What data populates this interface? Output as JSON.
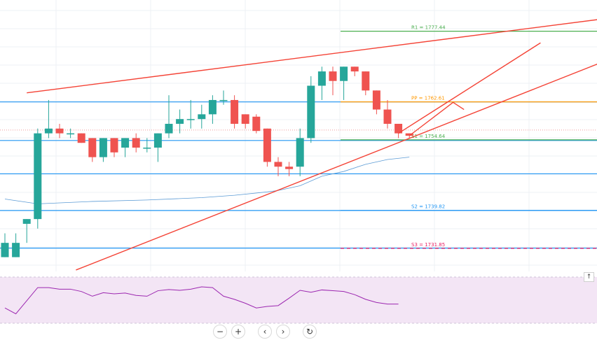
{
  "chart_data": {
    "type": "candlestick",
    "ylim": [
      1727,
      1784
    ],
    "pivots": [
      {
        "name": "R1",
        "label": "R1 = 1777.44",
        "value": 1777.44,
        "color": "#4caf50",
        "style": "solid"
      },
      {
        "name": "PP",
        "label": "PP = 1762.61",
        "value": 1762.61,
        "color": "#ff9800",
        "style": "solid"
      },
      {
        "name": "S1",
        "label": "S1 = 1754.64",
        "value": 1754.64,
        "color": "#4caf50",
        "style": "solid"
      },
      {
        "name": "S2",
        "label": "S2 = 1739.82",
        "value": 1739.82,
        "color": "#2196f3",
        "style": "solid"
      },
      {
        "name": "S3",
        "label": "S3 = 1731.85",
        "value": 1731.85,
        "color": "#e91e63",
        "style": "dashed"
      }
    ],
    "horizontal_levels": [
      1784.5,
      1762.6,
      1754.5,
      1747.5,
      1739.8,
      1731.9
    ],
    "candles": [
      {
        "o": 1730.0,
        "h": 1735.0,
        "l": 1730.0,
        "c": 1733.0
      },
      {
        "o": 1730.0,
        "h": 1735.0,
        "l": 1730.0,
        "c": 1733.0
      },
      {
        "o": 1737.0,
        "h": 1738.0,
        "l": 1733.0,
        "c": 1738.0
      },
      {
        "o": 1738.0,
        "h": 1757.0,
        "l": 1736.0,
        "c": 1756.0
      },
      {
        "o": 1756.0,
        "h": 1763.0,
        "l": 1755.0,
        "c": 1757.0
      },
      {
        "o": 1757.0,
        "h": 1758.0,
        "l": 1755.0,
        "c": 1756.0
      },
      {
        "o": 1756.0,
        "h": 1757.0,
        "l": 1755.0,
        "c": 1756.0
      },
      {
        "o": 1756.0,
        "h": 1756.0,
        "l": 1754.0,
        "c": 1754.0
      },
      {
        "o": 1755.0,
        "h": 1755.0,
        "l": 1750.0,
        "c": 1751.0
      },
      {
        "o": 1751.0,
        "h": 1755.0,
        "l": 1750.0,
        "c": 1755.0
      },
      {
        "o": 1755.0,
        "h": 1755.0,
        "l": 1751.0,
        "c": 1752.0
      },
      {
        "o": 1753.0,
        "h": 1755.0,
        "l": 1751.0,
        "c": 1755.0
      },
      {
        "o": 1755.0,
        "h": 1756.0,
        "l": 1752.0,
        "c": 1753.0
      },
      {
        "o": 1753.0,
        "h": 1755.0,
        "l": 1752.0,
        "c": 1753.0
      },
      {
        "o": 1753.0,
        "h": 1756.0,
        "l": 1750.0,
        "c": 1756.0
      },
      {
        "o": 1756.0,
        "h": 1764.0,
        "l": 1755.0,
        "c": 1758.0
      },
      {
        "o": 1758.0,
        "h": 1761.0,
        "l": 1756.0,
        "c": 1759.0
      },
      {
        "o": 1759.0,
        "h": 1763.0,
        "l": 1757.0,
        "c": 1759.0
      },
      {
        "o": 1759.0,
        "h": 1762.0,
        "l": 1757.0,
        "c": 1760.0
      },
      {
        "o": 1760.0,
        "h": 1764.0,
        "l": 1758.0,
        "c": 1763.0
      },
      {
        "o": 1763.0,
        "h": 1765.0,
        "l": 1762.0,
        "c": 1763.0
      },
      {
        "o": 1763.0,
        "h": 1764.0,
        "l": 1757.0,
        "c": 1758.0
      },
      {
        "o": 1760.0,
        "h": 1760.0,
        "l": 1757.0,
        "c": 1758.0
      },
      {
        "o": 1759.5,
        "h": 1760.0,
        "l": 1756.0,
        "c": 1756.5
      },
      {
        "o": 1757.0,
        "h": 1757.0,
        "l": 1749.0,
        "c": 1750.0
      },
      {
        "o": 1750.0,
        "h": 1751.0,
        "l": 1747.0,
        "c": 1749.0
      },
      {
        "o": 1749.0,
        "h": 1750.0,
        "l": 1747.0,
        "c": 1748.5
      },
      {
        "o": 1749.0,
        "h": 1757.0,
        "l": 1747.0,
        "c": 1755.0
      },
      {
        "o": 1755.0,
        "h": 1768.0,
        "l": 1754.0,
        "c": 1766.0
      },
      {
        "o": 1766.0,
        "h": 1770.0,
        "l": 1763.0,
        "c": 1769.0
      },
      {
        "o": 1769.0,
        "h": 1770.0,
        "l": 1764.0,
        "c": 1767.0
      },
      {
        "o": 1767.0,
        "h": 1770.0,
        "l": 1763.0,
        "c": 1770.0
      },
      {
        "o": 1770.0,
        "h": 1770.0,
        "l": 1768.0,
        "c": 1769.0
      },
      {
        "o": 1769.0,
        "h": 1769.0,
        "l": 1764.0,
        "c": 1765.0
      },
      {
        "o": 1765.0,
        "h": 1765.0,
        "l": 1760.0,
        "c": 1761.0
      },
      {
        "o": 1761.0,
        "h": 1763.0,
        "l": 1757.0,
        "c": 1758.0
      },
      {
        "o": 1758.0,
        "h": 1758.0,
        "l": 1755.0,
        "c": 1756.0
      },
      {
        "o": 1756.0,
        "h": 1756.0,
        "l": 1755.0,
        "c": 1755.5
      }
    ],
    "moving_average": [
      [
        0,
        1742.2
      ],
      [
        3,
        1741.2
      ],
      [
        8,
        1741.7
      ],
      [
        13,
        1742.0
      ],
      [
        18,
        1742.5
      ],
      [
        21,
        1743.0
      ],
      [
        24,
        1743.7
      ],
      [
        25,
        1744.0
      ],
      [
        27,
        1745.0
      ],
      [
        29,
        1747.0
      ],
      [
        31,
        1748.0
      ],
      [
        33,
        1749.5
      ],
      [
        35,
        1750.5
      ],
      [
        37,
        1751.0
      ]
    ],
    "trend_lines": [
      {
        "x1": 2.0,
        "y1": 1764.5,
        "x2": 58.0,
        "y2": 1781.0,
        "color": "#f44336"
      },
      {
        "x1": 6.5,
        "y1": 1727.3,
        "x2": 58.0,
        "y2": 1774.0,
        "color": "#f44336"
      },
      {
        "x1": 36.0,
        "y1": 1756.0,
        "x2": 49.0,
        "y2": 1775.0,
        "color": "#f44336"
      },
      {
        "x1": 37.0,
        "y1": 1755.5,
        "x2": 41.0,
        "y2": 1762.5,
        "color": "#f44336"
      },
      {
        "x1": 41.0,
        "y1": 1762.5,
        "x2": 42.0,
        "y2": 1761.0,
        "color": "#f44336"
      }
    ],
    "rsi": {
      "ylim": [
        0,
        100
      ],
      "values": [
        [
          0,
          30
        ],
        [
          1,
          15
        ],
        [
          3,
          82
        ],
        [
          4,
          82
        ],
        [
          5,
          78
        ],
        [
          6,
          78
        ],
        [
          7,
          72
        ],
        [
          8,
          60
        ],
        [
          9,
          69
        ],
        [
          10,
          66
        ],
        [
          11,
          68
        ],
        [
          12,
          62
        ],
        [
          13,
          60
        ],
        [
          14,
          74
        ],
        [
          15,
          77
        ],
        [
          16,
          75
        ],
        [
          17,
          78
        ],
        [
          18,
          84
        ],
        [
          19,
          82
        ],
        [
          20,
          60
        ],
        [
          21,
          52
        ],
        [
          22,
          42
        ],
        [
          23,
          30
        ],
        [
          24,
          34
        ],
        [
          25,
          36
        ],
        [
          26,
          55
        ],
        [
          27,
          75
        ],
        [
          28,
          70
        ],
        [
          29,
          76
        ],
        [
          30,
          74
        ],
        [
          31,
          72
        ],
        [
          32,
          64
        ],
        [
          33,
          52
        ],
        [
          34,
          44
        ],
        [
          35,
          40
        ],
        [
          36,
          40
        ]
      ],
      "colors": {
        "line": "#9c27b0",
        "band": "#f3e5f5"
      }
    },
    "colors": {
      "up": "#26a69a",
      "down": "#ef5350",
      "ma": "#5b9bd5",
      "grid": "#eef0f4"
    }
  },
  "controls": {
    "zoom_out": "−",
    "zoom_in": "+",
    "scroll_left": "‹",
    "scroll_right": "›",
    "reset": "↻",
    "scroll_up": "↑"
  }
}
